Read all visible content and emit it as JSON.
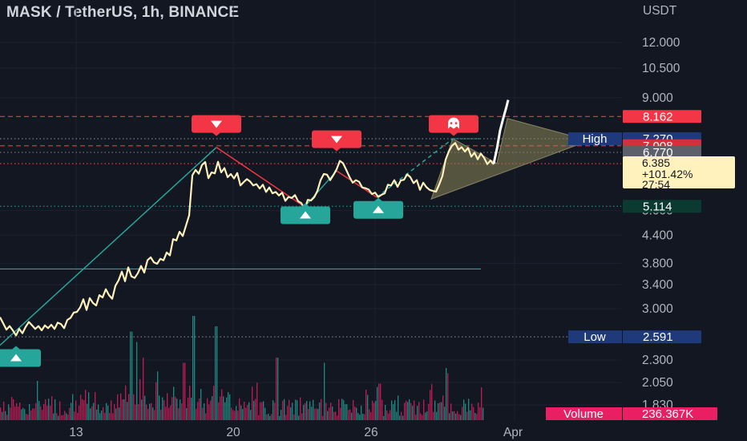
{
  "header": {
    "title": "MASK / TetherUS, 1h, BINANCE"
  },
  "chart_data": {
    "type": "line",
    "symbol": "MASK / TetherUS",
    "interval": "1h",
    "exchange": "BINANCE",
    "y_scale": "log",
    "y_unit": "USDT",
    "y_ticks": [
      "12.000",
      "10.500",
      "9.000",
      "5.000",
      "4.400",
      "3.800",
      "3.400",
      "3.000",
      "2.300",
      "2.050",
      "1.830"
    ],
    "x_ticks": [
      "13",
      "20",
      "26",
      "Apr"
    ],
    "price_series": {
      "name": "MASK / TetherUS",
      "color": "#fff2bd",
      "x": [
        0,
        4,
        8,
        12,
        16,
        20,
        24,
        28,
        32,
        36,
        40,
        44,
        48,
        52,
        56,
        60,
        64,
        68,
        72,
        76,
        80,
        84,
        88,
        92,
        96,
        100,
        104,
        108,
        112,
        116,
        120,
        124,
        128,
        132,
        136,
        140,
        144,
        148,
        152,
        156,
        160,
        164,
        168,
        172,
        176,
        180,
        184,
        188,
        192,
        196,
        200,
        204,
        208,
        212,
        216,
        220,
        224,
        228,
        232,
        236,
        240,
        244,
        248,
        252,
        256,
        260,
        264,
        268,
        272,
        276,
        280,
        284,
        288,
        292,
        296,
        300,
        304,
        308,
        312,
        316,
        320,
        324,
        328,
        332,
        336,
        340,
        344,
        348,
        352,
        356,
        360,
        364,
        368,
        372,
        376,
        380,
        384,
        388,
        392,
        396,
        400,
        404,
        408,
        412,
        416,
        420,
        424,
        428,
        432,
        436,
        440,
        444,
        448,
        452,
        456,
        460,
        464,
        468,
        472,
        476,
        480,
        484,
        488,
        492,
        496,
        500,
        504,
        508,
        512,
        516,
        520,
        524,
        528,
        532,
        536,
        540,
        544,
        548,
        552,
        556,
        560,
        564,
        568,
        572,
        576,
        580,
        584,
        588,
        592,
        596,
        600,
        604,
        608,
        612,
        616
      ],
      "y": [
        2.87,
        2.78,
        2.69,
        2.74,
        2.68,
        2.61,
        2.7,
        2.64,
        2.73,
        2.8,
        2.75,
        2.7,
        2.74,
        2.68,
        2.75,
        2.71,
        2.76,
        2.7,
        2.79,
        2.77,
        2.71,
        2.83,
        2.86,
        2.94,
        2.95,
        3.02,
        3.15,
        2.98,
        3.17,
        3.09,
        3.05,
        3.22,
        3.18,
        3.32,
        3.22,
        3.16,
        3.38,
        3.48,
        3.64,
        3.46,
        3.72,
        3.55,
        3.52,
        3.61,
        3.75,
        3.62,
        3.86,
        3.92,
        3.82,
        3.79,
        3.89,
        3.86,
        4.02,
        3.96,
        4.31,
        4.28,
        4.48,
        4.38,
        4.62,
        4.88,
        6.01,
        6.18,
        6.06,
        6.34,
        6.44,
        5.92,
        6.1,
        6.07,
        6.45,
        6.1,
        6.24,
        5.95,
        6.05,
        5.91,
        6.08,
        5.7,
        5.8,
        5.89,
        5.82,
        5.7,
        5.74,
        5.61,
        5.72,
        5.51,
        5.64,
        5.47,
        5.51,
        5.41,
        5.49,
        5.26,
        5.37,
        5.34,
        5.42,
        5.25,
        5.2,
        5.04,
        5.29,
        5.27,
        5.36,
        5.54,
        5.86,
        6.05,
        6.03,
        5.86,
        6.02,
        6.2,
        6.48,
        6.4,
        6.18,
        5.96,
        5.78,
        5.86,
        5.81,
        5.64,
        5.62,
        5.58,
        5.45,
        5.49,
        5.37,
        5.43,
        5.47,
        5.72,
        5.7,
        5.86,
        5.66,
        5.85,
        5.87,
        6.04,
        5.95,
        5.77,
        5.86,
        5.57,
        5.78,
        5.65,
        5.57,
        5.54,
        5.52,
        5.73,
        5.99,
        6.52,
        6.81,
        7.01,
        7.11,
        6.87,
        6.96,
        6.8,
        6.93,
        6.62,
        6.76,
        6.53,
        6.73,
        6.58,
        6.37,
        6.49,
        6.36
      ]
    },
    "projection": {
      "color": "#ffffff",
      "x": [
        616,
        620,
        624,
        628,
        632,
        634
      ],
      "y": [
        6.39,
        6.9,
        7.6,
        8.1,
        8.6,
        8.9
      ]
    },
    "horizontal_lines": [
      {
        "level": 8.162,
        "style": "dashed",
        "color": "#f23645"
      },
      {
        "level": 7.008,
        "style": "dashed",
        "color": "#f23645"
      },
      {
        "level": 7.27,
        "style": "dotted",
        "color": "#787b86"
      },
      {
        "level": 6.77,
        "style": "dotted",
        "color": "#787b86"
      },
      {
        "level": 6.385,
        "style": "dotted",
        "color": "#f23645"
      },
      {
        "level": 5.114,
        "style": "dotted",
        "color": "#089981"
      },
      {
        "level": 3.69,
        "style": "solid",
        "color": "#26a69a"
      },
      {
        "level": 2.591,
        "style": "dotted",
        "color": "#787b86"
      }
    ],
    "price_labels": [
      {
        "text": "8.162",
        "level": 8.162,
        "bg": "#f23645",
        "fg": "#ffffff"
      },
      {
        "text": "7.270",
        "level": 7.27,
        "bg": "#1e3a7a",
        "fg": "#ffffff",
        "tag": "High"
      },
      {
        "text": "7.008",
        "level": 7.008,
        "bg": "#d32f3c",
        "fg": "#ffffff"
      },
      {
        "text": "6.770",
        "level": 6.77,
        "bg": "#5d606b",
        "fg": "#ffffff"
      },
      {
        "text": "5.114",
        "level": 5.114,
        "bg": "#0b3a31",
        "fg": "#ffffff"
      },
      {
        "text": "2.591",
        "level": 2.591,
        "bg": "#1e3a7a",
        "fg": "#ffffff",
        "tag": "Low"
      },
      {
        "text": "236.367K",
        "bg": "#e91e63",
        "fg": "#ffffff",
        "tag": "Volume"
      }
    ],
    "last_price": {
      "value": "6.385",
      "change": "+101.42%",
      "countdown": "27:54",
      "color": "#fff2bd"
    },
    "volume": {
      "colors": {
        "up": "#26a69a",
        "down": "#e91e63"
      },
      "max_volume_label": "236.367K"
    },
    "markers": [
      {
        "type": "up",
        "color": "#26a69a",
        "x": 20,
        "level": 2.32
      },
      {
        "type": "down",
        "color": "#f23645",
        "x": 270,
        "level": 7.85
      },
      {
        "type": "up",
        "color": "#26a69a",
        "x": 381,
        "level": 4.88
      },
      {
        "type": "down",
        "color": "#f23645",
        "x": 420,
        "level": 7.25
      },
      {
        "type": "up",
        "color": "#26a69a",
        "x": 472,
        "level": 5.02
      },
      {
        "type": "ghost",
        "color": "#f23645",
        "x": 566,
        "level": 7.85
      }
    ],
    "trendlines": [
      {
        "color": "#26a69a",
        "style": "solid",
        "x": [
          0,
          270
        ],
        "y": [
          2.48,
          6.95
        ]
      },
      {
        "color": "#f23645",
        "style": "solid",
        "x": [
          270,
          380
        ],
        "y": [
          6.95,
          5.1
        ]
      },
      {
        "color": "#26a69a",
        "style": "solid",
        "x": [
          380,
          420
        ],
        "y": [
          5.1,
          6.15
        ]
      },
      {
        "color": "#f23645",
        "style": "solid",
        "x": [
          420,
          470
        ],
        "y": [
          6.15,
          5.36
        ]
      },
      {
        "color": "#26a69a",
        "style": "dashed",
        "x": [
          470,
          565
        ],
        "y": [
          5.36,
          7.27
        ]
      },
      {
        "color": "#26a69a",
        "style": "dotted",
        "x": [
          565,
          600
        ],
        "y": [
          7.27,
          7.27
        ]
      }
    ],
    "triangle": {
      "fill": "rgba(141,135,88,0.55)",
      "stroke": "#8a8664",
      "apex_x": 735,
      "apex_level": 7.2
    }
  }
}
